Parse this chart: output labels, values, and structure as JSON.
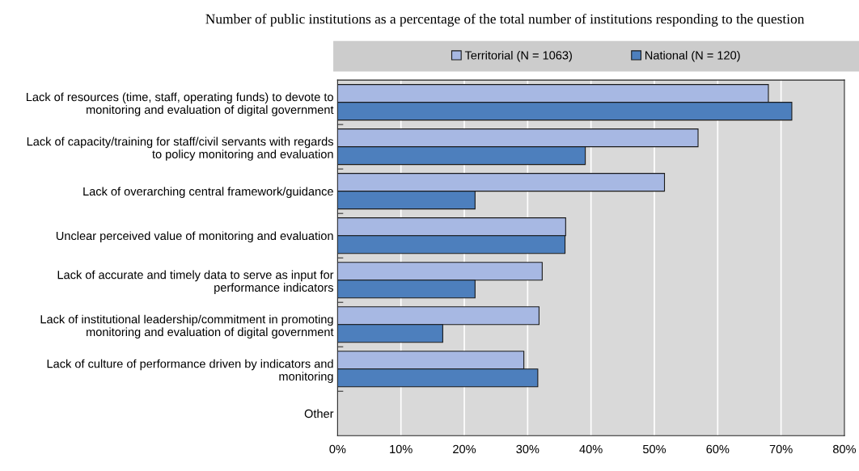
{
  "chart_data": {
    "type": "bar",
    "orientation": "horizontal",
    "title": "Number of public institutions as a percentage of the total number of institutions responding to the question",
    "categories": [
      "Lack of resources (time, staff, operating funds) to devote to\nmonitoring and evaluation of digital government",
      "Lack of capacity/training for staff/civil servants with regards\nto policy monitoring and evaluation",
      "Lack of overarching central framework/guidance",
      "Unclear perceived value of monitoring and evaluation",
      "Lack of accurate and timely data to serve as input for\nperformance indicators",
      "Lack of institutional leadership/commitment in promoting\nmonitoring and evaluation of digital government",
      "Lack of culture of performance driven by indicators and\nmonitoring",
      "Other"
    ],
    "series": [
      {
        "name": "Territorial (N = 1063)",
        "color": "#a7b8e3",
        "values": [
          68.0,
          56.9,
          51.6,
          36.0,
          32.3,
          31.8,
          29.4,
          null
        ]
      },
      {
        "name": "National (N = 120)",
        "color": "#4d7fbd",
        "values": [
          71.7,
          39.1,
          21.7,
          35.9,
          21.7,
          16.6,
          31.6,
          null
        ]
      }
    ],
    "xlim": [
      0,
      80
    ],
    "xticks": [
      {
        "value": 0,
        "label": "0%"
      },
      {
        "value": 10,
        "label": "10%"
      },
      {
        "value": 20,
        "label": "20%"
      },
      {
        "value": 30,
        "label": "30%"
      },
      {
        "value": 40,
        "label": "40%"
      },
      {
        "value": 50,
        "label": "50%"
      },
      {
        "value": 60,
        "label": "60%"
      },
      {
        "value": 70,
        "label": "70%"
      },
      {
        "value": 80,
        "label": "80%"
      }
    ],
    "grid": "x",
    "legend": "top"
  }
}
